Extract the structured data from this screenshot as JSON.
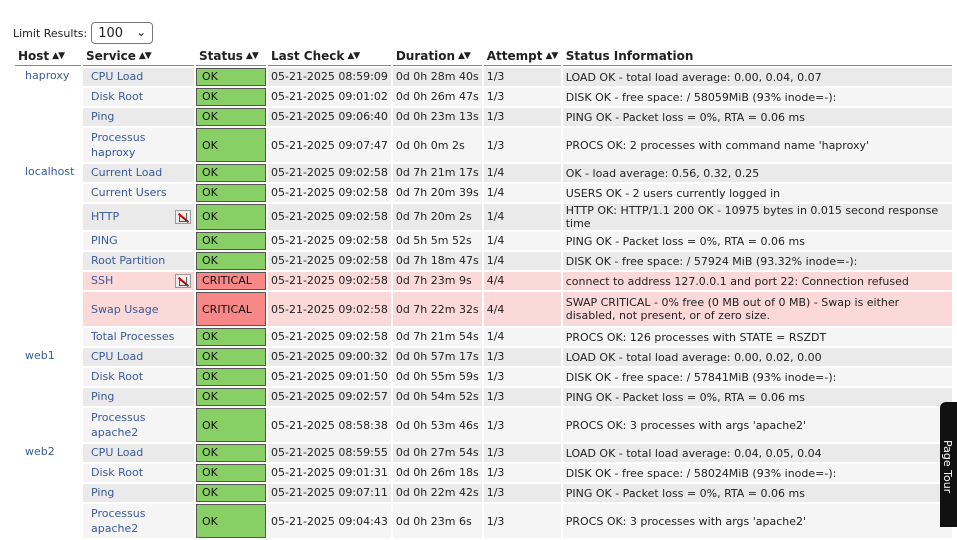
{
  "limit": {
    "label": "Limit Results:",
    "value": "100"
  },
  "columns": [
    "Host",
    "Service",
    "Status",
    "Last Check",
    "Duration",
    "Attempt",
    "Status Information"
  ],
  "page_tour": "Page Tour",
  "hosts": [
    {
      "name": "haproxy",
      "services": [
        {
          "service": "CPU Load",
          "status": "OK",
          "last_check": "05-21-2025 08:59:09",
          "duration": "0d 0h 28m 40s",
          "attempt": "1/3",
          "info": "LOAD OK - total load average: 0.00, 0.04, 0.07"
        },
        {
          "service": "Disk Root",
          "status": "OK",
          "last_check": "05-21-2025 09:01:02",
          "duration": "0d 0h 26m 47s",
          "attempt": "1/3",
          "info": "DISK OK - free space: / 58059MiB (93% inode=-):"
        },
        {
          "service": "Ping",
          "status": "OK",
          "last_check": "05-21-2025 09:06:40",
          "duration": "0d 0h 23m 13s",
          "attempt": "1/3",
          "info": "PING OK - Packet loss = 0%, RTA = 0.06 ms"
        },
        {
          "service": "Processus haproxy",
          "status": "OK",
          "last_check": "05-21-2025 09:07:47",
          "duration": "0d 0h 0m 2s",
          "attempt": "1/3",
          "info": "PROCS OK: 2 processes with command name 'haproxy'"
        }
      ]
    },
    {
      "name": "localhost",
      "services": [
        {
          "service": "Current Load",
          "status": "OK",
          "last_check": "05-21-2025 09:02:58",
          "duration": "0d 7h 21m 17s",
          "attempt": "1/4",
          "info": "OK - load average: 0.56, 0.32, 0.25"
        },
        {
          "service": "Current Users",
          "status": "OK",
          "last_check": "05-21-2025 09:02:58",
          "duration": "0d 7h 20m 39s",
          "attempt": "1/4",
          "info": "USERS OK - 2 users currently logged in"
        },
        {
          "service": "HTTP",
          "status": "OK",
          "last_check": "05-21-2025 09:02:58",
          "duration": "0d 7h 20m 2s",
          "attempt": "1/4",
          "info": "HTTP OK: HTTP/1.1 200 OK - 10975 bytes in 0.015 second response time"
        },
        {
          "service": "PING",
          "status": "OK",
          "last_check": "05-21-2025 09:02:58",
          "duration": "0d 5h 5m 52s",
          "attempt": "1/4",
          "info": "PING OK - Packet loss = 0%, RTA = 0.06 ms"
        },
        {
          "service": "Root Partition",
          "status": "OK",
          "last_check": "05-21-2025 09:02:58",
          "duration": "0d 7h 18m 47s",
          "attempt": "1/4",
          "info": "DISK OK - free space: / 57924 MiB (93.32% inode=-):"
        },
        {
          "service": "SSH",
          "status": "CRITICAL",
          "last_check": "05-21-2025 09:02:58",
          "duration": "0d 7h 23m 9s",
          "attempt": "4/4",
          "info": "connect to address 127.0.0.1 and port 22: Connection refused"
        },
        {
          "service": "Swap Usage",
          "status": "CRITICAL",
          "last_check": "05-21-2025 09:02:58",
          "duration": "0d 7h 22m 32s",
          "attempt": "4/4",
          "info": "SWAP CRITICAL - 0% free (0 MB out of 0 MB) - Swap is either disabled, not present, or of zero size."
        },
        {
          "service": "Total Processes",
          "status": "OK",
          "last_check": "05-21-2025 09:02:58",
          "duration": "0d 7h 21m 54s",
          "attempt": "1/4",
          "info": "PROCS OK: 126 processes with STATE = RSZDT"
        }
      ]
    },
    {
      "name": "web1",
      "services": [
        {
          "service": "CPU Load",
          "status": "OK",
          "last_check": "05-21-2025 09:00:32",
          "duration": "0d 0h 57m 17s",
          "attempt": "1/3",
          "info": "LOAD OK - total load average: 0.00, 0.02, 0.00"
        },
        {
          "service": "Disk Root",
          "status": "OK",
          "last_check": "05-21-2025 09:01:50",
          "duration": "0d 0h 55m 59s",
          "attempt": "1/3",
          "info": "DISK OK - free space: / 57841MiB (93% inode=-):"
        },
        {
          "service": "Ping",
          "status": "OK",
          "last_check": "05-21-2025 09:02:57",
          "duration": "0d 0h 54m 52s",
          "attempt": "1/3",
          "info": "PING OK - Packet loss = 0%, RTA = 0.06 ms"
        },
        {
          "service": "Processus apache2",
          "status": "OK",
          "last_check": "05-21-2025 08:58:38",
          "duration": "0d 0h 53m 46s",
          "attempt": "1/3",
          "info": "PROCS OK: 3 processes with args 'apache2'"
        }
      ]
    },
    {
      "name": "web2",
      "services": [
        {
          "service": "CPU Load",
          "status": "OK",
          "last_check": "05-21-2025 08:59:55",
          "duration": "0d 0h 27m 54s",
          "attempt": "1/3",
          "info": "LOAD OK - total load average: 0.04, 0.05, 0.04"
        },
        {
          "service": "Disk Root",
          "status": "OK",
          "last_check": "05-21-2025 09:01:31",
          "duration": "0d 0h 26m 18s",
          "attempt": "1/3",
          "info": "DISK OK - free space: / 58024MiB (93% inode=-):"
        },
        {
          "service": "Ping",
          "status": "OK",
          "last_check": "05-21-2025 09:07:11",
          "duration": "0d 0h 22m 42s",
          "attempt": "1/3",
          "info": "PING OK - Packet loss = 0%, RTA = 0.06 ms"
        },
        {
          "service": "Processus apache2",
          "status": "OK",
          "last_check": "05-21-2025 09:04:43",
          "duration": "0d 0h 23m 6s",
          "attempt": "1/3",
          "info": "PROCS OK: 3 processes with args 'apache2'"
        }
      ]
    }
  ]
}
